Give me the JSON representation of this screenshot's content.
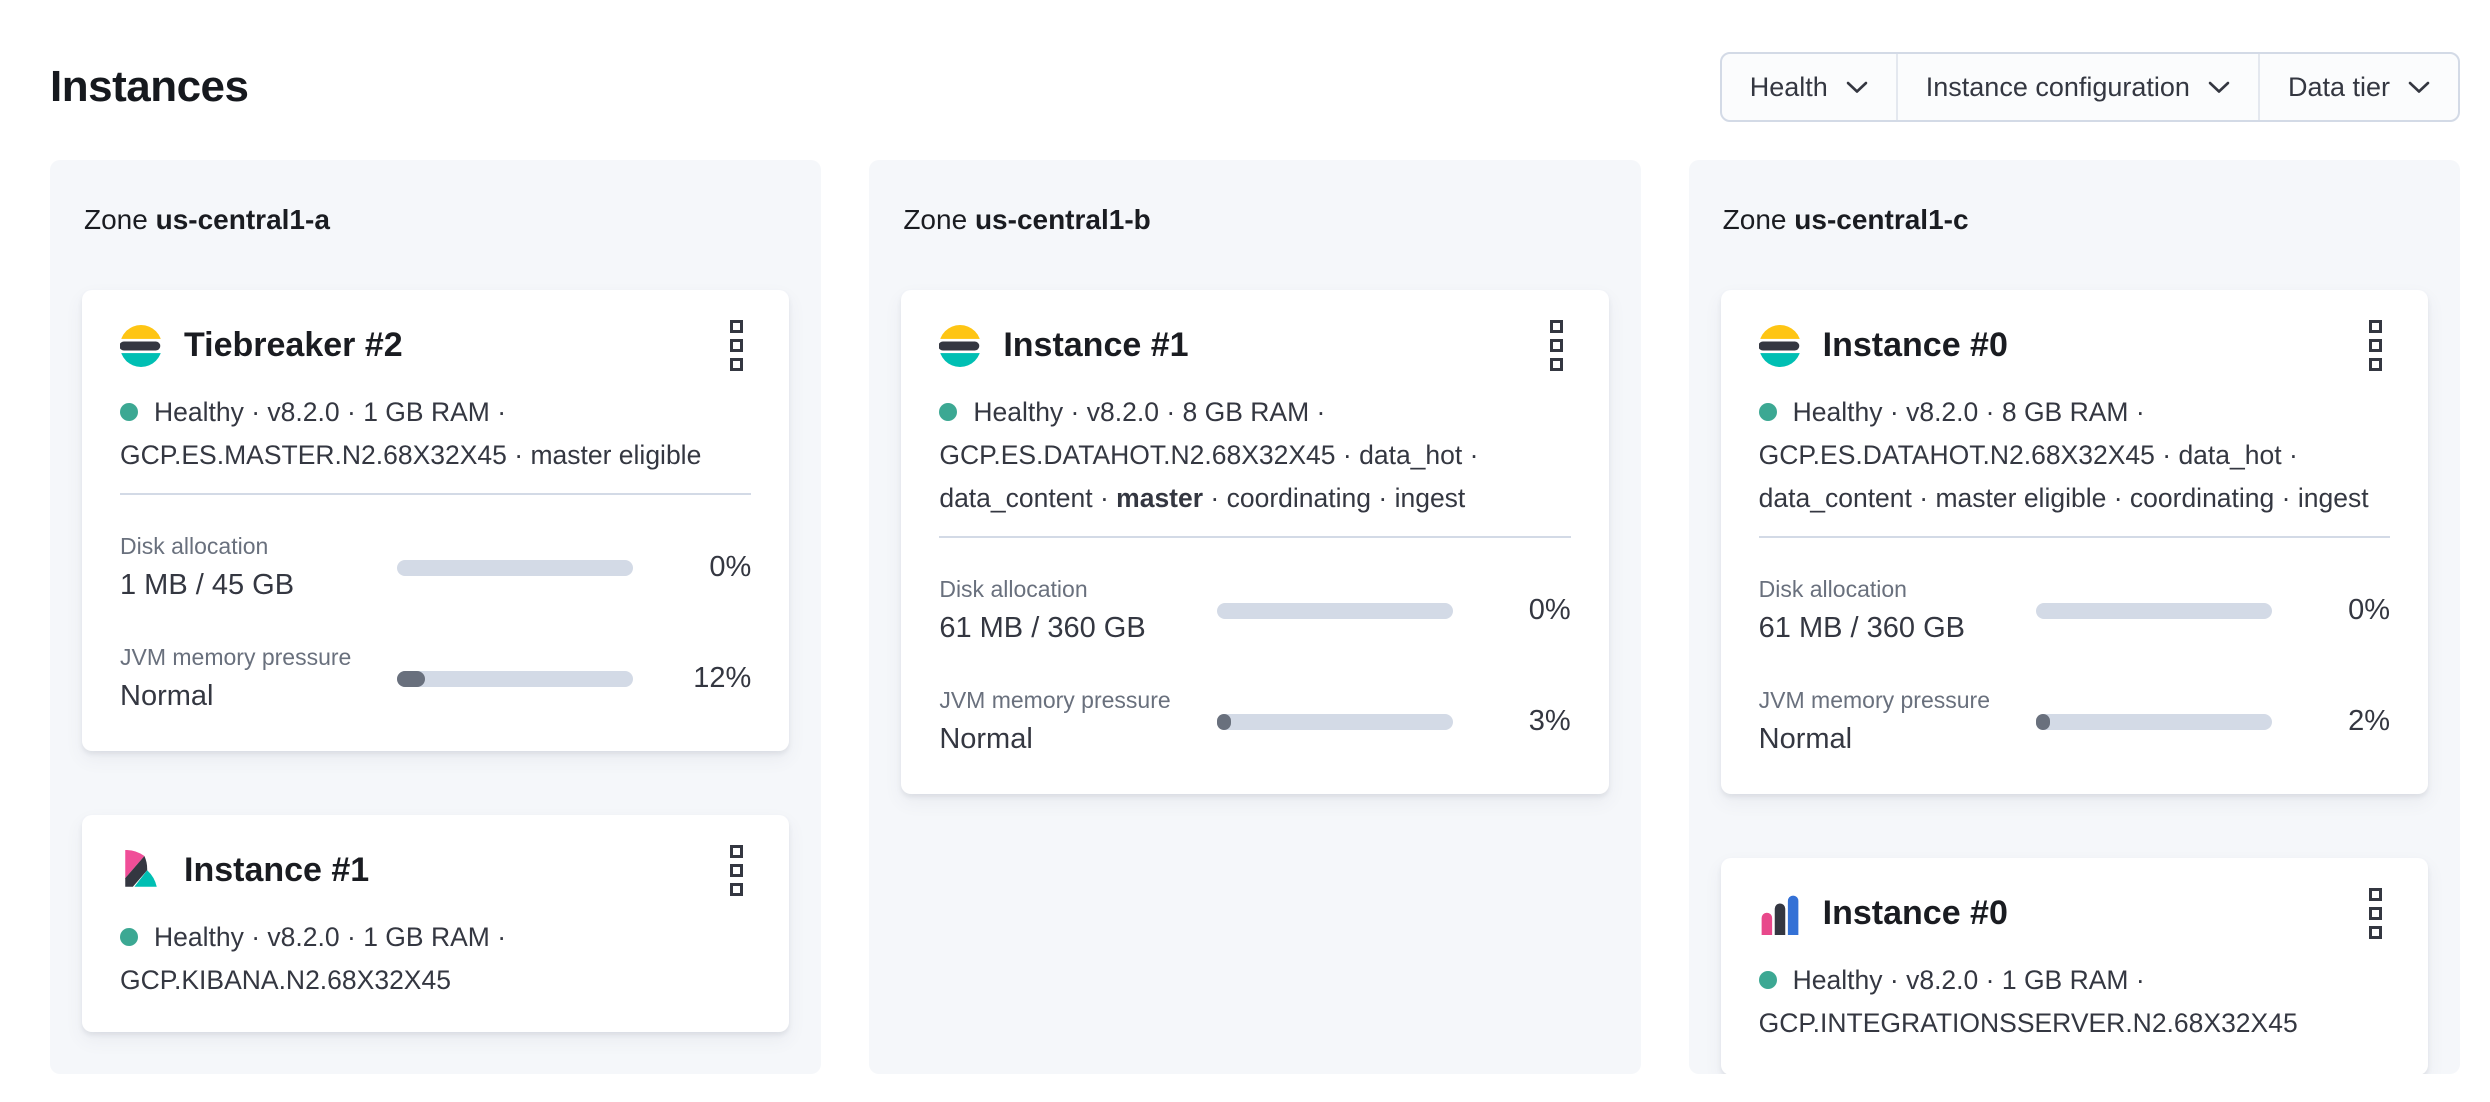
{
  "page": {
    "title": "Instances"
  },
  "filters": [
    {
      "label": "Health",
      "icon": "chevron-down-icon"
    },
    {
      "label": "Instance configuration",
      "icon": "chevron-down-icon"
    },
    {
      "label": "Data tier",
      "icon": "chevron-down-icon"
    }
  ],
  "colors": {
    "panel_bg": "#F5F7FA",
    "card_bg": "#FFFFFF",
    "heading_text": "#1A1C21",
    "body_text": "#343741",
    "subdued_text": "#69707D",
    "divider": "#D3DAE6",
    "bar_track": "#D3DAE6",
    "bar_fill": "#69707D",
    "health_dot": "#3CA893",
    "es_yellow": "#FEC514",
    "es_dark": "#343741",
    "es_teal": "#00BFB3",
    "kibana_pink": "#F04E98",
    "kibana_dark": "#343741",
    "kibana_teal": "#00BFB3",
    "integrations_pink": "#E8488B",
    "integrations_dark": "#343741",
    "integrations_blue": "#3471D6"
  },
  "zones": [
    {
      "label_prefix": "Zone",
      "name": "us-central1-a",
      "instances": [
        {
          "logo": "elasticsearch-logo",
          "title": "Tiebreaker #2",
          "status": "Healthy",
          "meta": [
            {
              "text": "Healthy"
            },
            {
              "text": "v8.2.0"
            },
            {
              "text": "1 GB RAM"
            },
            {
              "text": "GCP.ES.MASTER.N2.68X32X45"
            },
            {
              "text": "master eligible"
            }
          ],
          "metrics": [
            {
              "label": "Disk allocation",
              "value": "1 MB / 45 GB",
              "percent": "0%",
              "fill_pct": 0
            },
            {
              "label": "JVM memory pressure",
              "value": "Normal",
              "percent": "12%",
              "fill_pct": 12
            }
          ]
        },
        {
          "logo": "kibana-logo",
          "title": "Instance #1",
          "status": "Healthy",
          "meta": [
            {
              "text": "Healthy"
            },
            {
              "text": "v8.2.0"
            },
            {
              "text": "1 GB RAM"
            },
            {
              "text": "GCP.KIBANA.N2.68X32X45"
            }
          ],
          "metrics": []
        }
      ]
    },
    {
      "label_prefix": "Zone",
      "name": "us-central1-b",
      "instances": [
        {
          "logo": "elasticsearch-logo",
          "title": "Instance #1",
          "status": "Healthy",
          "meta": [
            {
              "text": "Healthy"
            },
            {
              "text": "v8.2.0"
            },
            {
              "text": "8 GB RAM"
            },
            {
              "text": "GCP.ES.DATAHOT.N2.68X32X45"
            },
            {
              "text": "data_hot"
            },
            {
              "text": "data_content"
            },
            {
              "text": "master",
              "bold": true
            },
            {
              "text": "coordinating"
            },
            {
              "text": "ingest"
            }
          ],
          "metrics": [
            {
              "label": "Disk allocation",
              "value": "61 MB / 360 GB",
              "percent": "0%",
              "fill_pct": 0
            },
            {
              "label": "JVM memory pressure",
              "value": "Normal",
              "percent": "3%",
              "fill_pct": 3
            }
          ]
        }
      ]
    },
    {
      "label_prefix": "Zone",
      "name": "us-central1-c",
      "instances": [
        {
          "logo": "elasticsearch-logo",
          "title": "Instance #0",
          "status": "Healthy",
          "meta": [
            {
              "text": "Healthy"
            },
            {
              "text": "v8.2.0"
            },
            {
              "text": "8 GB RAM"
            },
            {
              "text": "GCP.ES.DATAHOT.N2.68X32X45"
            },
            {
              "text": "data_hot"
            },
            {
              "text": "data_content"
            },
            {
              "text": "master eligible"
            },
            {
              "text": "coordinating"
            },
            {
              "text": "ingest"
            }
          ],
          "metrics": [
            {
              "label": "Disk allocation",
              "value": "61 MB / 360 GB",
              "percent": "0%",
              "fill_pct": 0
            },
            {
              "label": "JVM memory pressure",
              "value": "Normal",
              "percent": "2%",
              "fill_pct": 2
            }
          ]
        },
        {
          "logo": "integrations-server-logo",
          "title": "Instance #0",
          "status": "Healthy",
          "meta": [
            {
              "text": "Healthy"
            },
            {
              "text": "v8.2.0"
            },
            {
              "text": "1 GB RAM"
            },
            {
              "text": "GCP.INTEGRATIONSSERVER.N2.68X32X45"
            }
          ],
          "metrics": []
        }
      ]
    }
  ]
}
